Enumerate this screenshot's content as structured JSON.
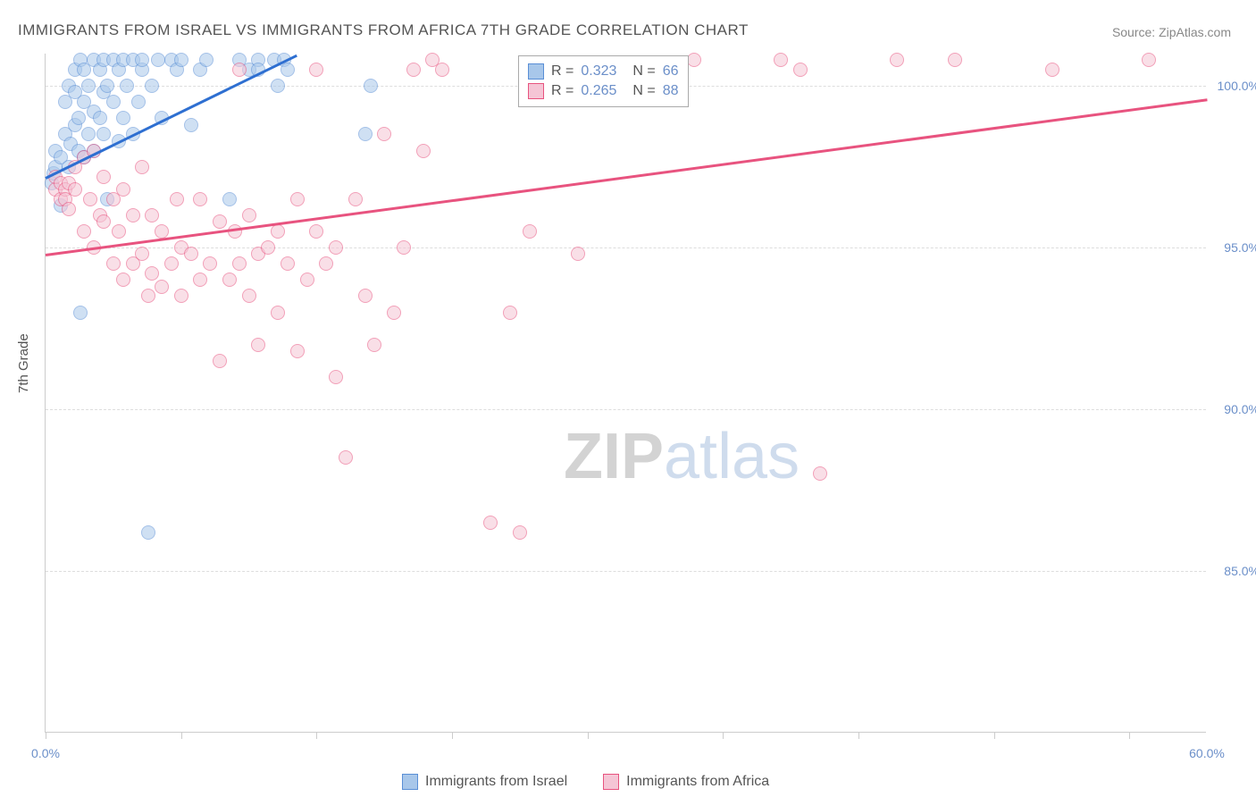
{
  "title": "IMMIGRANTS FROM ISRAEL VS IMMIGRANTS FROM AFRICA 7TH GRADE CORRELATION CHART",
  "source": "Source: ZipAtlas.com",
  "ylabel": "7th Grade",
  "watermark": {
    "zip": "ZIP",
    "atlas": "atlas"
  },
  "chart": {
    "type": "scatter",
    "xlim": [
      0,
      60
    ],
    "ylim": [
      80,
      101
    ],
    "xtick_positions": [
      0,
      7,
      14,
      21,
      28,
      35,
      42,
      49,
      56
    ],
    "xtick_labels": {
      "0": "0.0%",
      "60": "60.0%"
    },
    "ytick_positions": [
      85,
      90,
      95,
      100
    ],
    "ytick_labels": [
      "85.0%",
      "90.0%",
      "95.0%",
      "100.0%"
    ],
    "grid_color": "#dddddd",
    "background_color": "#ffffff",
    "axis_color": "#cccccc",
    "label_color": "#6b8fc9",
    "marker_radius": 8,
    "series": [
      {
        "name": "Immigrants from Israel",
        "color_fill": "#a8c7ea",
        "color_stroke": "#5a8fd6",
        "R": "0.323",
        "N": "66",
        "trend": {
          "x1": 0,
          "y1": 97.2,
          "x2": 13,
          "y2": 101,
          "color": "#2e6fd1",
          "width": 3
        },
        "points": [
          [
            0.3,
            97.0
          ],
          [
            0.4,
            97.3
          ],
          [
            0.5,
            97.5
          ],
          [
            0.5,
            98.0
          ],
          [
            0.8,
            96.3
          ],
          [
            0.8,
            97.8
          ],
          [
            1.0,
            98.5
          ],
          [
            1.0,
            99.5
          ],
          [
            1.2,
            97.5
          ],
          [
            1.2,
            100.0
          ],
          [
            1.3,
            98.2
          ],
          [
            1.5,
            98.8
          ],
          [
            1.5,
            99.8
          ],
          [
            1.5,
            100.5
          ],
          [
            1.7,
            98.0
          ],
          [
            1.7,
            99.0
          ],
          [
            1.8,
            100.8
          ],
          [
            1.8,
            93.0
          ],
          [
            2.0,
            97.8
          ],
          [
            2.0,
            99.5
          ],
          [
            2.0,
            100.5
          ],
          [
            2.2,
            98.5
          ],
          [
            2.2,
            100.0
          ],
          [
            2.5,
            98.0
          ],
          [
            2.5,
            99.2
          ],
          [
            2.5,
            100.8
          ],
          [
            2.8,
            99.0
          ],
          [
            2.8,
            100.5
          ],
          [
            3.0,
            98.5
          ],
          [
            3.0,
            99.8
          ],
          [
            3.0,
            100.8
          ],
          [
            3.2,
            100.0
          ],
          [
            3.2,
            96.5
          ],
          [
            3.5,
            99.5
          ],
          [
            3.5,
            100.8
          ],
          [
            3.8,
            98.3
          ],
          [
            3.8,
            100.5
          ],
          [
            4.0,
            99.0
          ],
          [
            4.0,
            100.8
          ],
          [
            4.2,
            100.0
          ],
          [
            4.5,
            100.8
          ],
          [
            4.5,
            98.5
          ],
          [
            4.8,
            99.5
          ],
          [
            5.0,
            100.5
          ],
          [
            5.0,
            100.8
          ],
          [
            5.3,
            86.2
          ],
          [
            5.5,
            100.0
          ],
          [
            5.8,
            100.8
          ],
          [
            6.0,
            99.0
          ],
          [
            6.5,
            100.8
          ],
          [
            6.8,
            100.5
          ],
          [
            7.0,
            100.8
          ],
          [
            7.5,
            98.8
          ],
          [
            8.0,
            100.5
          ],
          [
            8.3,
            100.8
          ],
          [
            9.5,
            96.5
          ],
          [
            10.0,
            100.8
          ],
          [
            10.5,
            100.5
          ],
          [
            11.0,
            100.8
          ],
          [
            11.0,
            100.5
          ],
          [
            11.8,
            100.8
          ],
          [
            12.0,
            100.0
          ],
          [
            12.3,
            100.8
          ],
          [
            12.5,
            100.5
          ],
          [
            16.5,
            98.5
          ],
          [
            16.8,
            100.0
          ]
        ]
      },
      {
        "name": "Immigrants from Africa",
        "color_fill": "#f5c5d5",
        "color_stroke": "#e8537f",
        "R": "0.265",
        "N": "88",
        "trend": {
          "x1": 0,
          "y1": 94.8,
          "x2": 60,
          "y2": 99.6,
          "color": "#e8537f",
          "width": 3
        },
        "points": [
          [
            0.5,
            96.8
          ],
          [
            0.5,
            97.2
          ],
          [
            0.8,
            96.5
          ],
          [
            0.8,
            97.0
          ],
          [
            1.0,
            96.8
          ],
          [
            1.0,
            96.5
          ],
          [
            1.2,
            97.0
          ],
          [
            1.2,
            96.2
          ],
          [
            1.5,
            97.5
          ],
          [
            1.5,
            96.8
          ],
          [
            2.0,
            95.5
          ],
          [
            2.0,
            97.8
          ],
          [
            2.3,
            96.5
          ],
          [
            2.5,
            95.0
          ],
          [
            2.5,
            98.0
          ],
          [
            2.8,
            96.0
          ],
          [
            3.0,
            95.8
          ],
          [
            3.0,
            97.2
          ],
          [
            3.5,
            94.5
          ],
          [
            3.5,
            96.5
          ],
          [
            3.8,
            95.5
          ],
          [
            4.0,
            94.0
          ],
          [
            4.0,
            96.8
          ],
          [
            4.5,
            94.5
          ],
          [
            4.5,
            96.0
          ],
          [
            5.0,
            94.8
          ],
          [
            5.0,
            97.5
          ],
          [
            5.3,
            93.5
          ],
          [
            5.5,
            94.2
          ],
          [
            5.5,
            96.0
          ],
          [
            6.0,
            93.8
          ],
          [
            6.0,
            95.5
          ],
          [
            6.5,
            94.5
          ],
          [
            6.8,
            96.5
          ],
          [
            7.0,
            93.5
          ],
          [
            7.0,
            95.0
          ],
          [
            7.5,
            94.8
          ],
          [
            8.0,
            94.0
          ],
          [
            8.0,
            96.5
          ],
          [
            8.5,
            94.5
          ],
          [
            9.0,
            91.5
          ],
          [
            9.0,
            95.8
          ],
          [
            9.5,
            94.0
          ],
          [
            9.8,
            95.5
          ],
          [
            10.0,
            94.5
          ],
          [
            10.0,
            100.5
          ],
          [
            10.5,
            93.5
          ],
          [
            10.5,
            96.0
          ],
          [
            11.0,
            92.0
          ],
          [
            11.0,
            94.8
          ],
          [
            11.5,
            95.0
          ],
          [
            12.0,
            93.0
          ],
          [
            12.0,
            95.5
          ],
          [
            12.5,
            94.5
          ],
          [
            13.0,
            91.8
          ],
          [
            13.0,
            96.5
          ],
          [
            13.5,
            94.0
          ],
          [
            14.0,
            95.5
          ],
          [
            14.0,
            100.5
          ],
          [
            14.5,
            94.5
          ],
          [
            15.0,
            91.0
          ],
          [
            15.0,
            95.0
          ],
          [
            15.5,
            88.5
          ],
          [
            16.0,
            96.5
          ],
          [
            16.5,
            93.5
          ],
          [
            17.0,
            92.0
          ],
          [
            17.5,
            98.5
          ],
          [
            18.0,
            93.0
          ],
          [
            18.5,
            95.0
          ],
          [
            19.0,
            100.5
          ],
          [
            19.5,
            98.0
          ],
          [
            20.0,
            100.8
          ],
          [
            20.5,
            100.5
          ],
          [
            23.0,
            86.5
          ],
          [
            24.0,
            93.0
          ],
          [
            24.5,
            86.2
          ],
          [
            25.0,
            95.5
          ],
          [
            27.5,
            94.8
          ],
          [
            28.0,
            100.5
          ],
          [
            32.0,
            100.5
          ],
          [
            33.5,
            100.8
          ],
          [
            38.0,
            100.8
          ],
          [
            39.0,
            100.5
          ],
          [
            40.0,
            88.0
          ],
          [
            44.0,
            100.8
          ],
          [
            47.0,
            100.8
          ],
          [
            52.0,
            100.5
          ],
          [
            57.0,
            100.8
          ]
        ]
      }
    ]
  },
  "legend_top": {
    "rows": [
      {
        "swatch_fill": "#a8c7ea",
        "swatch_stroke": "#5a8fd6",
        "R": "0.323",
        "N": "66"
      },
      {
        "swatch_fill": "#f5c5d5",
        "swatch_stroke": "#e8537f",
        "R": "0.265",
        "N": "88"
      }
    ],
    "r_prefix": "R = ",
    "n_prefix": "N = "
  },
  "legend_bottom": {
    "items": [
      {
        "swatch_fill": "#a8c7ea",
        "swatch_stroke": "#5a8fd6",
        "label": "Immigrants from Israel"
      },
      {
        "swatch_fill": "#f5c5d5",
        "swatch_stroke": "#e8537f",
        "label": "Immigrants from Africa"
      }
    ]
  }
}
